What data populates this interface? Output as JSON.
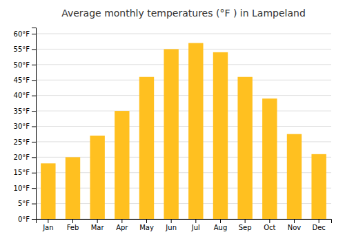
{
  "chart_data": {
    "type": "bar",
    "title": "Average monthly temperatures (°F ) in Lampeland",
    "categories": [
      "Jan",
      "Feb",
      "Mar",
      "Apr",
      "May",
      "Jun",
      "Jul",
      "Aug",
      "Sep",
      "Oct",
      "Nov",
      "Dec"
    ],
    "values": [
      18,
      20,
      27,
      35,
      46,
      55,
      57,
      54,
      46,
      39,
      27.5,
      21
    ],
    "color": "#FFC020",
    "ylim": [
      0,
      62
    ],
    "yticks": [
      {
        "value": 0,
        "label": "0°F"
      },
      {
        "value": 5,
        "label": "5°F"
      },
      {
        "value": 10,
        "label": "10°F"
      },
      {
        "value": 15,
        "label": "15°F"
      },
      {
        "value": 20,
        "label": "20°F"
      },
      {
        "value": 25,
        "label": "25°F"
      },
      {
        "value": 30,
        "label": "30°F"
      },
      {
        "value": 35,
        "label": "35°F"
      },
      {
        "value": 40,
        "label": "40°F"
      },
      {
        "value": 45,
        "label": "45°F"
      },
      {
        "value": 50,
        "label": "50°F"
      },
      {
        "value": 55,
        "label": "55°F"
      },
      {
        "value": 60,
        "label": "60°F"
      }
    ],
    "grid": true
  }
}
